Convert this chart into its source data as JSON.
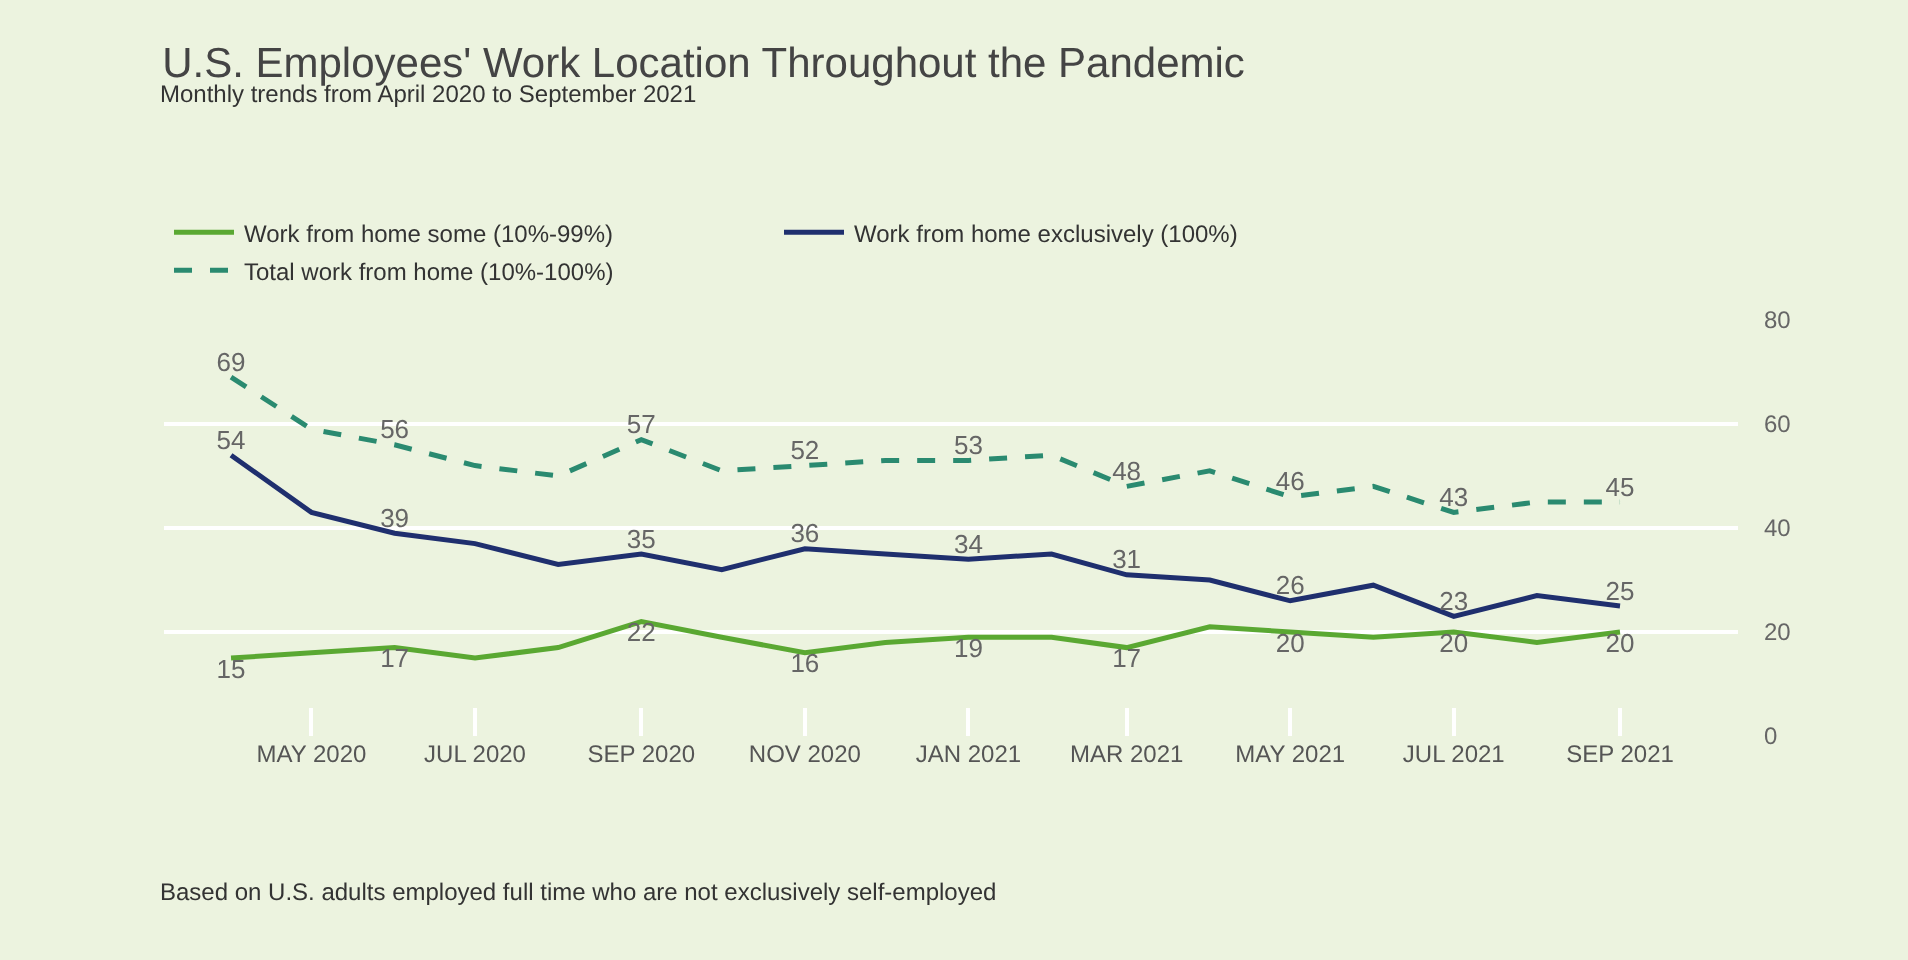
{
  "chart_data": {
    "type": "line",
    "title": "U.S. Employees' Work Location Throughout the Pandemic",
    "subtitle": "Monthly trends from April 2020 to September 2021",
    "x": [
      "2020-04",
      "2020-05",
      "2020-06",
      "2020-07",
      "2020-08",
      "2020-09",
      "2020-10",
      "2020-11",
      "2020-12",
      "2021-01",
      "2021-02",
      "2021-03",
      "2021-04",
      "2021-05",
      "2021-06",
      "2021-07",
      "2021-08",
      "2021-09"
    ],
    "series": [
      {
        "name": "Work from home some (10%-99%)",
        "color": "#5aa832",
        "line_style": "solid",
        "values": [
          15,
          16,
          17,
          15,
          17,
          22,
          19,
          16,
          18,
          19,
          19,
          17,
          21,
          20,
          19,
          20,
          18,
          20
        ],
        "value_labels": [
          "15",
          null,
          "17",
          null,
          null,
          "22",
          null,
          "16",
          null,
          "19",
          null,
          "17",
          null,
          "20",
          null,
          "20",
          null,
          "20"
        ]
      },
      {
        "name": "Work from home exclusively (100%)",
        "color": "#1f2f6e",
        "line_style": "solid",
        "values": [
          54,
          43,
          39,
          37,
          33,
          35,
          32,
          36,
          35,
          34,
          35,
          31,
          30,
          26,
          29,
          23,
          27,
          25
        ],
        "value_labels": [
          "54",
          null,
          "39",
          null,
          null,
          "35",
          null,
          "36",
          null,
          "34",
          null,
          "31",
          null,
          "26",
          null,
          "23",
          null,
          "25"
        ]
      },
      {
        "name": "Total work from home (10%-100%)",
        "color": "#2a8a70",
        "line_style": "dashed",
        "values": [
          69,
          59,
          56,
          52,
          50,
          57,
          51,
          52,
          53,
          53,
          54,
          48,
          51,
          46,
          48,
          43,
          45,
          45
        ],
        "value_labels": [
          "69",
          null,
          "56",
          null,
          null,
          "57",
          null,
          "52",
          null,
          "53",
          null,
          "48",
          null,
          "46",
          null,
          "43",
          null,
          "45"
        ]
      }
    ],
    "xlim": [
      "2020-03-07",
      "2021-10-15"
    ],
    "xticks": [
      {
        "value": "2020-05",
        "label": "MAY 2020"
      },
      {
        "value": "2020-07",
        "label": "JUL 2020"
      },
      {
        "value": "2020-09",
        "label": "SEP 2020"
      },
      {
        "value": "2020-11",
        "label": "NOV 2020"
      },
      {
        "value": "2021-01",
        "label": "JAN 2021"
      },
      {
        "value": "2021-03",
        "label": "MAR 2021"
      },
      {
        "value": "2021-05",
        "label": "MAY 2021"
      },
      {
        "value": "2021-07",
        "label": "JUL 2021"
      },
      {
        "value": "2021-09",
        "label": "SEP 2021"
      }
    ],
    "ylim": [
      0,
      80
    ],
    "yticks": [
      0,
      20,
      40,
      60,
      80
    ],
    "grid": "y",
    "legend": "top left",
    "marker": "none",
    "annotations": [
      "Based on U.S. adults employed full time who are not exclusively self-employed"
    ]
  }
}
